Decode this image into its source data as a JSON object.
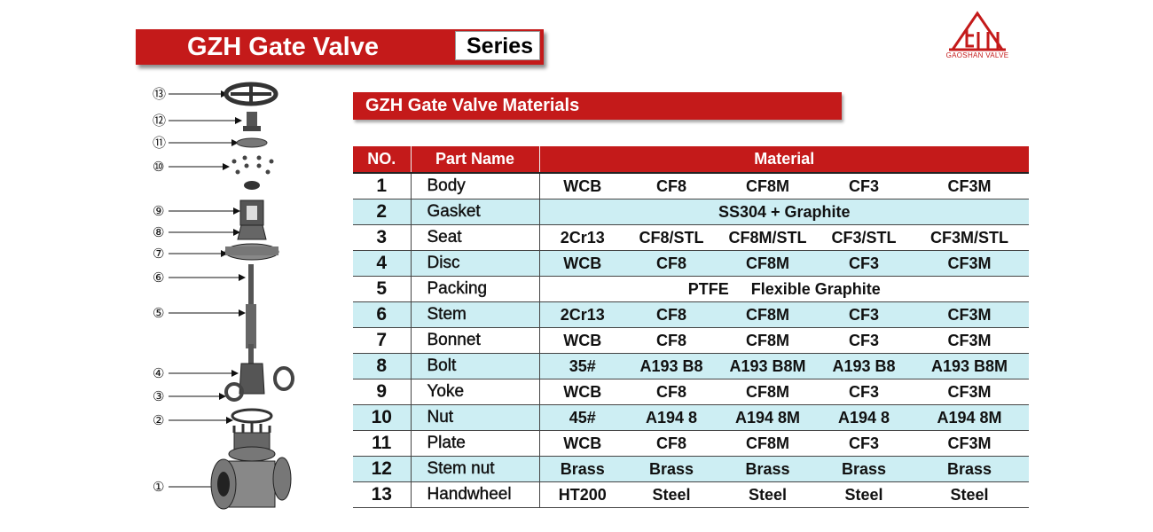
{
  "header": {
    "title": "GZH Gate Valve",
    "series": "Series"
  },
  "logo": {
    "text": "GAOSHAN VALVE",
    "color": "#c41a1a"
  },
  "section": {
    "title": "GZH Gate Valve Materials"
  },
  "table": {
    "headers": {
      "no": "NO.",
      "part_name": "Part  Name",
      "material": "Material"
    },
    "rows": [
      {
        "no": "1",
        "name": "Body",
        "materials": [
          "WCB",
          "CF8",
          "CF8M",
          "CF3",
          "CF3M"
        ]
      },
      {
        "no": "2",
        "name": "Gasket",
        "merged": "SS304 + Graphite"
      },
      {
        "no": "3",
        "name": "Seat",
        "materials": [
          "2Cr13",
          "CF8/STL",
          "CF8M/STL",
          "CF3/STL",
          "CF3M/STL"
        ]
      },
      {
        "no": "4",
        "name": "Disc",
        "materials": [
          "WCB",
          "CF8",
          "CF8M",
          "CF3",
          "CF3M"
        ]
      },
      {
        "no": "5",
        "name": "Packing",
        "merged": "PTFE     Flexible Graphite"
      },
      {
        "no": "6",
        "name": "Stem",
        "materials": [
          "2Cr13",
          "CF8",
          "CF8M",
          "CF3",
          "CF3M"
        ]
      },
      {
        "no": "7",
        "name": "Bonnet",
        "materials": [
          "WCB",
          "CF8",
          "CF8M",
          "CF3",
          "CF3M"
        ]
      },
      {
        "no": "8",
        "name": "Bolt",
        "materials": [
          "35#",
          "A193 B8",
          "A193 B8M",
          "A193 B8",
          "A193 B8M"
        ]
      },
      {
        "no": "9",
        "name": "Yoke",
        "materials": [
          "WCB",
          "CF8",
          "CF8M",
          "CF3",
          "CF3M"
        ]
      },
      {
        "no": "10",
        "name": "Nut",
        "materials": [
          "45#",
          "A194 8",
          "A194 8M",
          "A194 8",
          "A194 8M"
        ]
      },
      {
        "no": "11",
        "name": "Plate",
        "materials": [
          "WCB",
          "CF8",
          "CF8M",
          "CF3",
          "CF3M"
        ]
      },
      {
        "no": "12",
        "name": "Stem nut",
        "materials": [
          "Brass",
          "Brass",
          "Brass",
          "Brass",
          "Brass"
        ]
      },
      {
        "no": "13",
        "name": "Handwheel",
        "materials": [
          "HT200",
          "Steel",
          "Steel",
          "Steel",
          "Steel"
        ]
      }
    ]
  },
  "diagram": {
    "callouts": [
      "⑬",
      "⑫",
      "⑪",
      "⑩",
      "⑨",
      "⑧",
      "⑦",
      "⑥",
      "⑤",
      "④",
      "③",
      "②",
      "①"
    ]
  },
  "colors": {
    "accent_red": "#c41a1a",
    "row_alt": "#cdeef3"
  }
}
